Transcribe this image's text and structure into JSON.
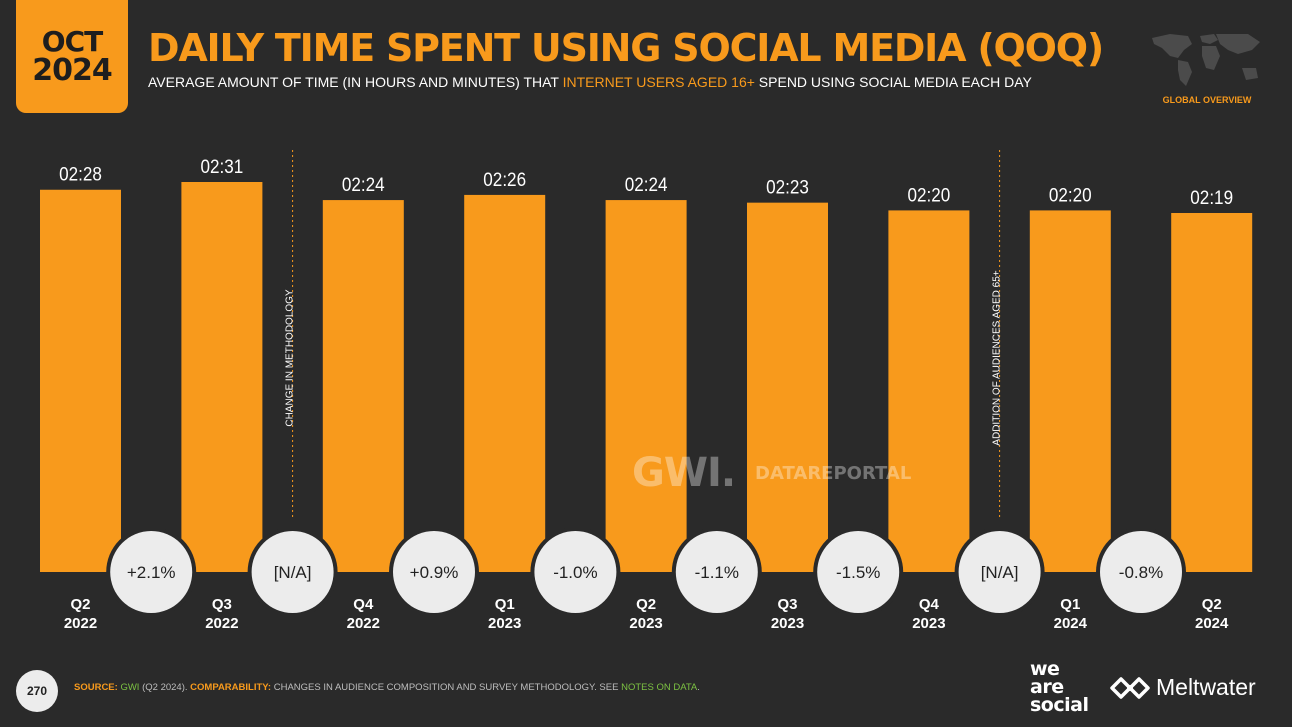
{
  "header": {
    "date_month": "OCT",
    "date_year": "2024",
    "title": "DAILY TIME SPENT USING SOCIAL MEDIA (QOQ)",
    "subtitle_before": "AVERAGE AMOUNT OF TIME (IN HOURS AND MINUTES) THAT ",
    "subtitle_highlight": "INTERNET USERS AGED 16+",
    "subtitle_after": " SPEND USING SOCIAL MEDIA EACH DAY",
    "section_label": "GLOBAL OVERVIEW"
  },
  "watermark": {
    "gwi": "GWI.",
    "datareportal": "DATAREPORTAL"
  },
  "footer": {
    "page_number": "270",
    "source_label": "SOURCE:",
    "source_link": "GWI",
    "source_rest": " (Q2 2024). ",
    "comparability_label": "COMPARABILITY:",
    "comparability_text": " CHANGES IN AUDIENCE COMPOSITION AND SURVEY METHODOLOGY. SEE ",
    "notes_link": "NOTES ON DATA",
    "notes_end": "."
  },
  "brands": {
    "was_1": "we",
    "was_2": "are",
    "was_3": "social",
    "meltwater": "Meltwater"
  },
  "colors": {
    "accent": "#f89a1c",
    "background": "#2a2a2a",
    "bubble": "#ececec",
    "link": "#7cc142"
  },
  "chart_data": {
    "type": "bar",
    "categories": [
      [
        "Q2",
        "2022"
      ],
      [
        "Q3",
        "2022"
      ],
      [
        "Q4",
        "2022"
      ],
      [
        "Q1",
        "2023"
      ],
      [
        "Q2",
        "2023"
      ],
      [
        "Q3",
        "2023"
      ],
      [
        "Q4",
        "2023"
      ],
      [
        "Q1",
        "2024"
      ],
      [
        "Q2",
        "2024"
      ]
    ],
    "values_minutes": [
      148,
      151,
      144,
      146,
      144,
      143,
      140,
      140,
      139
    ],
    "value_labels": [
      "02:28",
      "02:31",
      "02:24",
      "02:26",
      "02:24",
      "02:23",
      "02:20",
      "02:20",
      "02:19"
    ],
    "changes": [
      "+2.1%",
      "[N/A]",
      "+0.9%",
      "-1.0%",
      "-1.1%",
      "-1.5%",
      "[N/A]",
      "-0.8%"
    ],
    "annotations": [
      {
        "after_index": 1,
        "text": "CHANGE IN METHODOLOGY"
      },
      {
        "after_index": 6,
        "text": "ADDITION OF AUDIENCES AGED 65+"
      }
    ],
    "color": "#f89a1c"
  }
}
